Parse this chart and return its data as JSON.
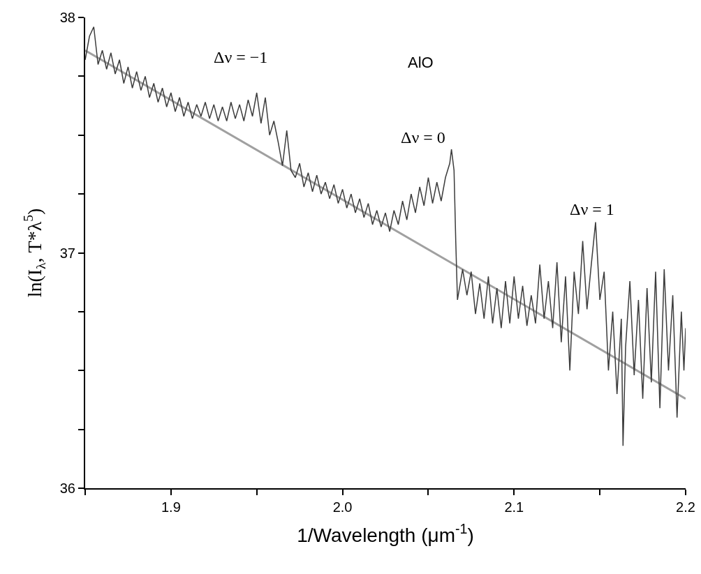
{
  "chart_data": {
    "type": "line",
    "xlabel": "1/Wavelength (μm$^{-1}$)",
    "ylabel": "ln(I$_{λ}$, T*λ$^{5}$)",
    "xlim": [
      1.85,
      2.2
    ],
    "ylim": [
      36,
      38
    ],
    "xticks": [
      {
        "value": 1.85,
        "label": null
      },
      1.9,
      {
        "value": 1.95,
        "label": null
      },
      {
        "value": 2.0,
        "label": "2.0"
      },
      {
        "value": 2.05,
        "label": null
      },
      2.1,
      {
        "value": 2.15,
        "label": null
      },
      2.2
    ],
    "yticks": [
      36,
      {
        "value": 36.25,
        "label": null
      },
      {
        "value": 36.5,
        "label": null
      },
      {
        "value": 36.75,
        "label": null
      },
      37,
      {
        "value": 37.25,
        "label": null
      },
      {
        "value": 37.5,
        "label": null
      },
      {
        "value": 37.75,
        "label": null
      },
      38
    ],
    "marker": "none",
    "line_style": "solid",
    "annotations": [
      "AlO",
      "Δν = −1",
      "Δν = 0",
      "Δν = 1"
    ],
    "series": [
      {
        "color": "#3c3c3c",
        "x": [
          1.85,
          1.8525,
          1.855,
          1.8575,
          1.86,
          1.8625,
          1.865,
          1.8675,
          1.87,
          1.8725,
          1.875,
          1.8775,
          1.88,
          1.8825,
          1.885,
          1.8875,
          1.89,
          1.8925,
          1.895,
          1.8975,
          1.9,
          1.9025,
          1.905,
          1.9075,
          1.91,
          1.9125,
          1.915,
          1.9175,
          1.92,
          1.9225,
          1.925,
          1.9275,
          1.93,
          1.9325,
          1.935,
          1.9375,
          1.94,
          1.9425,
          1.945,
          1.9475,
          1.95,
          1.9525,
          1.955,
          1.9575,
          1.96,
          1.9625,
          1.965,
          1.9675,
          1.97,
          1.9725,
          1.975,
          1.9775,
          1.98,
          1.9825,
          1.985,
          1.9875,
          1.99,
          1.9925,
          1.995,
          1.9975,
          2.0,
          2.0025,
          2.005,
          2.0075,
          2.01,
          2.0125,
          2.015,
          2.0175,
          2.02,
          2.0225,
          2.025,
          2.0275,
          2.03,
          2.0325,
          2.035,
          2.0375,
          2.04,
          2.0425,
          2.045,
          2.0475,
          2.05,
          2.0525,
          2.055,
          2.0575,
          2.06,
          2.0625,
          2.0635,
          2.065,
          2.066,
          2.067,
          2.07,
          2.0725,
          2.075,
          2.0775,
          2.08,
          2.0825,
          2.085,
          2.0875,
          2.09,
          2.0925,
          2.095,
          2.0975,
          2.1,
          2.1025,
          2.105,
          2.1075,
          2.11,
          2.1125,
          2.115,
          2.1175,
          2.12,
          2.1225,
          2.125,
          2.1275,
          2.13,
          2.1325,
          2.135,
          2.1375,
          2.14,
          2.1425,
          2.145,
          2.1475,
          2.15,
          2.1525,
          2.155,
          2.1575,
          2.16,
          2.1625,
          2.1635,
          2.165,
          2.1675,
          2.17,
          2.1725,
          2.175,
          2.1775,
          2.18,
          2.1825,
          2.185,
          2.1875,
          2.19,
          2.1925,
          2.195,
          2.1975,
          2.199,
          2.2
        ],
        "values": [
          37.82,
          37.92,
          37.96,
          37.8,
          37.86,
          37.78,
          37.85,
          37.76,
          37.82,
          37.72,
          37.79,
          37.7,
          37.77,
          37.69,
          37.75,
          37.66,
          37.72,
          37.64,
          37.7,
          37.62,
          37.68,
          37.6,
          37.66,
          37.58,
          37.64,
          37.57,
          37.63,
          37.58,
          37.64,
          37.57,
          37.63,
          37.56,
          37.62,
          37.56,
          37.64,
          37.57,
          37.63,
          37.56,
          37.65,
          37.58,
          37.68,
          37.55,
          37.66,
          37.5,
          37.56,
          37.47,
          37.37,
          37.52,
          37.35,
          37.32,
          37.38,
          37.28,
          37.34,
          37.26,
          37.33,
          37.25,
          37.3,
          37.23,
          37.29,
          37.21,
          37.27,
          37.19,
          37.25,
          37.17,
          37.23,
          37.15,
          37.21,
          37.12,
          37.18,
          37.11,
          37.17,
          37.09,
          37.18,
          37.12,
          37.22,
          37.14,
          37.25,
          37.17,
          37.28,
          37.2,
          37.32,
          37.21,
          37.3,
          37.22,
          37.32,
          37.38,
          37.44,
          37.35,
          37.05,
          36.8,
          36.93,
          36.82,
          36.92,
          36.74,
          36.87,
          36.72,
          36.9,
          36.7,
          36.85,
          36.68,
          36.88,
          36.7,
          36.9,
          36.72,
          36.86,
          36.69,
          36.82,
          36.7,
          36.95,
          36.72,
          36.88,
          36.68,
          36.96,
          36.62,
          36.9,
          36.5,
          36.92,
          36.74,
          37.05,
          36.76,
          36.95,
          37.13,
          36.8,
          36.92,
          36.5,
          36.75,
          36.4,
          36.72,
          36.18,
          36.6,
          36.88,
          36.48,
          36.8,
          36.38,
          36.85,
          36.45,
          36.92,
          36.34,
          36.93,
          36.5,
          36.82,
          36.3,
          36.75,
          36.5,
          36.68
        ]
      },
      {
        "color": "#a0a0a0",
        "x": [
          1.85,
          2.2
        ],
        "values": [
          37.86,
          36.38
        ]
      }
    ]
  }
}
